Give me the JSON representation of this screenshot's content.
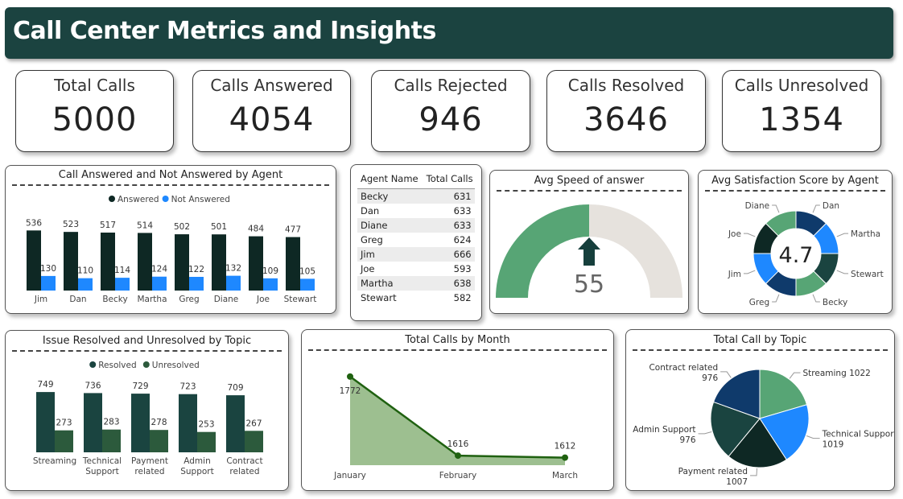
{
  "header": {
    "title": "Call Center Metrics and Insights"
  },
  "kpis": [
    {
      "label": "Total Calls",
      "value": "5000"
    },
    {
      "label": "Calls Answered",
      "value": "4054"
    },
    {
      "label": "Calls Rejected",
      "value": "946"
    },
    {
      "label": "Calls Resolved",
      "value": "3646"
    },
    {
      "label": "Calls Unresolved",
      "value": "1354"
    }
  ],
  "colors": {
    "header": "#1b4340",
    "dark": "#0e2824",
    "blue": "#1e88ff",
    "green": "#57a575",
    "navy": "#0f3a6b",
    "teal": "#1a4440",
    "grey": "#e6e2dd",
    "line": "#1f6110",
    "area": "#9dbf90"
  },
  "agent_table": {
    "headers": [
      "Agent Name",
      "Total Calls"
    ],
    "rows": [
      {
        "name": "Becky",
        "calls": "631"
      },
      {
        "name": "Dan",
        "calls": "633"
      },
      {
        "name": "Diane",
        "calls": "633"
      },
      {
        "name": "Greg",
        "calls": "624"
      },
      {
        "name": "Jim",
        "calls": "666"
      },
      {
        "name": "Joe",
        "calls": "593"
      },
      {
        "name": "Martha",
        "calls": "638"
      },
      {
        "name": "Stewart",
        "calls": "582"
      }
    ]
  },
  "chart_data": [
    {
      "type": "bar",
      "title": "Call Answered and Not Answered by Agent",
      "legend": "top-center",
      "categories": [
        "Jim",
        "Dan",
        "Becky",
        "Martha",
        "Greg",
        "Diane",
        "Joe",
        "Stewart"
      ],
      "series": [
        {
          "name": "Answered",
          "values": [
            536,
            523,
            517,
            514,
            502,
            501,
            484,
            477
          ],
          "color": "#0e2824"
        },
        {
          "name": "Not Answered",
          "values": [
            130,
            110,
            114,
            124,
            122,
            132,
            109,
            105
          ],
          "color": "#1e88ff"
        }
      ],
      "ylim": [
        0,
        560
      ]
    },
    {
      "type": "gauge",
      "title": "Avg Speed of answer",
      "value": 55,
      "max": 110
    },
    {
      "type": "pie",
      "title": "Avg Satisfaction Score by Agent",
      "center_label": "4.7",
      "categories": [
        "Dan",
        "Martha",
        "Stewart",
        "Becky",
        "Greg",
        "Jim",
        "Joe",
        "Diane"
      ],
      "values": [
        1,
        1,
        1,
        1,
        1,
        1,
        1,
        1
      ],
      "colors": [
        "#0f3a6b",
        "#1e88ff",
        "#1a4440",
        "#57a575",
        "#0f3a6b",
        "#1e88ff",
        "#0e2824",
        "#57a575"
      ]
    },
    {
      "type": "bar",
      "title": "Issue Resolved and Unresolved by Topic",
      "legend": "top-center",
      "categories": [
        "Streaming",
        "Technical Support",
        "Payment related",
        "Admin Support",
        "Contract related"
      ],
      "series": [
        {
          "name": "Resolved",
          "values": [
            749,
            736,
            729,
            723,
            709
          ],
          "color": "#1a4440"
        },
        {
          "name": "Unresolved",
          "values": [
            273,
            283,
            278,
            253,
            267
          ],
          "color": "#2c5a3c"
        }
      ],
      "ylim": [
        0,
        780
      ]
    },
    {
      "type": "area",
      "title": "Total Calls by Month",
      "categories": [
        "January",
        "February",
        "March"
      ],
      "values": [
        1772,
        1616,
        1612
      ],
      "ylim": [
        1605,
        1775
      ]
    },
    {
      "type": "pie",
      "title": "Total Call by Topic",
      "slices": [
        {
          "name": "Streaming",
          "value": 1022,
          "color": "#57a575"
        },
        {
          "name": "Technical Support",
          "value": 1019,
          "color": "#1e88ff"
        },
        {
          "name": "Payment related",
          "value": 1007,
          "color": "#0e2824"
        },
        {
          "name": "Admin Support",
          "value": 976,
          "color": "#1a4440"
        },
        {
          "name": "Contract related",
          "value": 976,
          "color": "#0f3a6b"
        }
      ]
    }
  ]
}
